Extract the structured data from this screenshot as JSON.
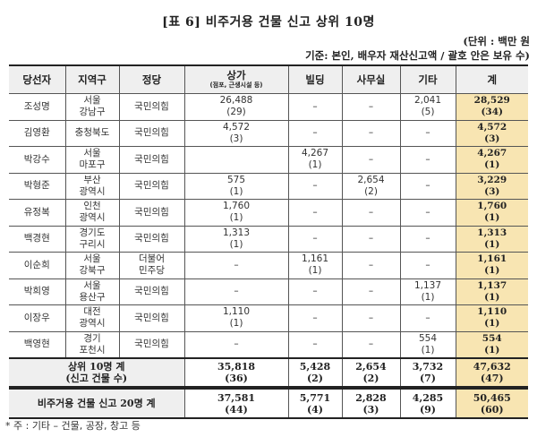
{
  "title": "[표 6] 비주거용 건물 신고 상위 10명",
  "unit": "(단위 : 백만 원",
  "basis": "기준: 본인, 배우자 재산신고액 / 괄호 안은 보유 수)",
  "headers": {
    "name": "당선자",
    "district": "지역구",
    "party": "정당",
    "commercial": "상가",
    "commercial_sub": "(점포, 근생시설 등)",
    "building": "빌딩",
    "office": "사무실",
    "other": "기타",
    "total": "계"
  },
  "rows": [
    {
      "name": "조성명",
      "district1": "서울",
      "district2": "강남구",
      "party1": "국민의힘",
      "party2": "",
      "commercial": {
        "value": "26,488",
        "count": "(29)"
      },
      "building": {
        "value": "–",
        "count": ""
      },
      "office": {
        "value": "–",
        "count": ""
      },
      "other": {
        "value": "2,041",
        "count": "(5)"
      },
      "total": {
        "value": "28,529",
        "count": "(34)"
      }
    },
    {
      "name": "김영환",
      "district1": "충청북도",
      "district2": "",
      "party1": "국민의힘",
      "party2": "",
      "commercial": {
        "value": "4,572",
        "count": "(3)"
      },
      "building": {
        "value": "–",
        "count": ""
      },
      "office": {
        "value": "–",
        "count": ""
      },
      "other": {
        "value": "–",
        "count": ""
      },
      "total": {
        "value": "4,572",
        "count": "(3)"
      }
    },
    {
      "name": "박강수",
      "district1": "서울",
      "district2": "마포구",
      "party1": "국민의힘",
      "party2": "",
      "commercial": {
        "value": "",
        "count": ""
      },
      "building": {
        "value": "4,267",
        "count": "(1)"
      },
      "office": {
        "value": "–",
        "count": ""
      },
      "other": {
        "value": "–",
        "count": ""
      },
      "total": {
        "value": "4,267",
        "count": "(1)"
      }
    },
    {
      "name": "박형준",
      "district1": "부산",
      "district2": "광역시",
      "party1": "국민의힘",
      "party2": "",
      "commercial": {
        "value": "575",
        "count": "(1)"
      },
      "building": {
        "value": "–",
        "count": ""
      },
      "office": {
        "value": "2,654",
        "count": "(2)"
      },
      "other": {
        "value": "–",
        "count": ""
      },
      "total": {
        "value": "3,229",
        "count": "(3)"
      }
    },
    {
      "name": "유정복",
      "district1": "인천",
      "district2": "광역시",
      "party1": "국민의힘",
      "party2": "",
      "commercial": {
        "value": "1,760",
        "count": "(1)"
      },
      "building": {
        "value": "–",
        "count": ""
      },
      "office": {
        "value": "–",
        "count": ""
      },
      "other": {
        "value": "–",
        "count": ""
      },
      "total": {
        "value": "1,760",
        "count": "(1)"
      }
    },
    {
      "name": "백경현",
      "district1": "경기도",
      "district2": "구리시",
      "party1": "국민의힘",
      "party2": "",
      "commercial": {
        "value": "1,313",
        "count": "(1)"
      },
      "building": {
        "value": "–",
        "count": ""
      },
      "office": {
        "value": "–",
        "count": ""
      },
      "other": {
        "value": "–",
        "count": ""
      },
      "total": {
        "value": "1,313",
        "count": "(1)"
      }
    },
    {
      "name": "이순희",
      "district1": "서울",
      "district2": "강북구",
      "party1": "더불어",
      "party2": "민주당",
      "commercial": {
        "value": "–",
        "count": ""
      },
      "building": {
        "value": "1,161",
        "count": "(1)"
      },
      "office": {
        "value": "–",
        "count": ""
      },
      "other": {
        "value": "–",
        "count": ""
      },
      "total": {
        "value": "1,161",
        "count": "(1)"
      }
    },
    {
      "name": "박희영",
      "district1": "서울",
      "district2": "용산구",
      "party1": "국민의힘",
      "party2": "",
      "commercial": {
        "value": "–",
        "count": ""
      },
      "building": {
        "value": "–",
        "count": ""
      },
      "office": {
        "value": "–",
        "count": ""
      },
      "other": {
        "value": "1,137",
        "count": "(1)"
      },
      "total": {
        "value": "1,137",
        "count": "(1)"
      }
    },
    {
      "name": "이장우",
      "district1": "대전",
      "district2": "광역시",
      "party1": "국민의힘",
      "party2": "",
      "commercial": {
        "value": "1,110",
        "count": "(1)"
      },
      "building": {
        "value": "–",
        "count": ""
      },
      "office": {
        "value": "–",
        "count": ""
      },
      "other": {
        "value": "–",
        "count": ""
      },
      "total": {
        "value": "1,110",
        "count": "(1)"
      }
    },
    {
      "name": "백영현",
      "district1": "경기",
      "district2": "포천시",
      "party1": "국민의힘",
      "party2": "",
      "commercial": {
        "value": "–",
        "count": ""
      },
      "building": {
        "value": "–",
        "count": ""
      },
      "office": {
        "value": "–",
        "count": ""
      },
      "other": {
        "value": "554",
        "count": "(1)"
      },
      "total": {
        "value": "554",
        "count": "(1)"
      }
    }
  ],
  "summary": {
    "label1": "상위 10명 계",
    "label2": "(신고 건물 수)",
    "commercial": {
      "value": "35,818",
      "count": "(36)"
    },
    "building": {
      "value": "5,428",
      "count": "(2)"
    },
    "office": {
      "value": "2,654",
      "count": "(2)"
    },
    "other": {
      "value": "3,732",
      "count": "(7)"
    },
    "total": {
      "value": "47,632",
      "count": "(47)"
    }
  },
  "grand_total": {
    "label": "비주거용 건물 신고 20명 계",
    "commercial": {
      "value": "37,581",
      "count": "(44)"
    },
    "building": {
      "value": "5,771",
      "count": "(4)"
    },
    "office": {
      "value": "2,828",
      "count": "(3)"
    },
    "other": {
      "value": "4,285",
      "count": "(9)"
    },
    "total": {
      "value": "50,465",
      "count": "(60)"
    }
  },
  "footnote": "* 주 : 기타 – 건물, 공장, 창고 등",
  "colors": {
    "header_bg": "#efefef",
    "total_col_bg": "#f8e5b2",
    "border": "#555555"
  }
}
